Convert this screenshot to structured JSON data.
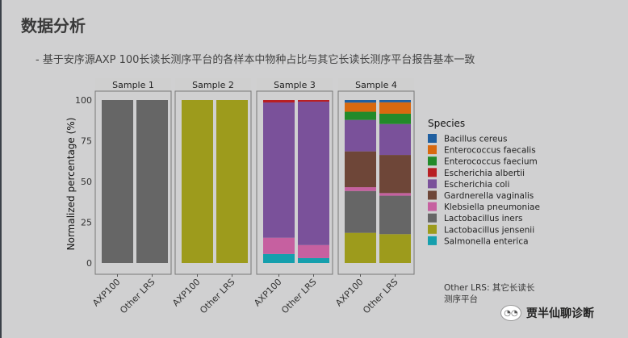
{
  "slide": {
    "title": "数据分析",
    "subtitle": "- 基于安序源AXP 100长读长测序平台的各样本中物种占比与其它长读长测序平台报告基本一致",
    "note": "Other LRS: 其它长读长测序平台",
    "watermark": "贾半仙聊诊断"
  },
  "chart_data": {
    "type": "bar",
    "stacked": true,
    "ylabel": "Normalized percentage (%)",
    "ylim": [
      0,
      100
    ],
    "yticks": [
      "0",
      "25",
      "50",
      "75",
      "100"
    ],
    "categories": [
      "AXP100",
      "Other LRS"
    ],
    "legend_title": "Species",
    "legend_position": "right",
    "species": [
      {
        "name": "Bacillus cereus",
        "color": "#1f5fa0"
      },
      {
        "name": "Enterococcus faecalis",
        "color": "#d8690f"
      },
      {
        "name": "Enterococcus faecium",
        "color": "#228a2a"
      },
      {
        "name": "Escherichia albertii",
        "color": "#b81f23"
      },
      {
        "name": "Escherichia coli",
        "color": "#7a519a"
      },
      {
        "name": "Gardnerella vaginalis",
        "color": "#6e4638"
      },
      {
        "name": "Klebsiella pneumoniae",
        "color": "#c660a0"
      },
      {
        "name": "Lactobacillus iners",
        "color": "#666666"
      },
      {
        "name": "Lactobacillus jensenii",
        "color": "#9d9b1c"
      },
      {
        "name": "Salmonella enterica",
        "color": "#159fad"
      }
    ],
    "panels": [
      {
        "title": "Sample 1",
        "bars": [
          {
            "Lactobacillus iners": 100
          },
          {
            "Lactobacillus iners": 100
          }
        ]
      },
      {
        "title": "Sample 2",
        "bars": [
          {
            "Lactobacillus jensenii": 100
          },
          {
            "Lactobacillus jensenii": 100
          }
        ]
      },
      {
        "title": "Sample 3",
        "bars": [
          {
            "Salmonella enterica": 5.5,
            "Klebsiella pneumoniae": 10,
            "Escherichia coli": 83,
            "Escherichia albertii": 1.5
          },
          {
            "Salmonella enterica": 3,
            "Klebsiella pneumoniae": 8,
            "Escherichia coli": 88,
            "Escherichia albertii": 1
          }
        ]
      },
      {
        "title": "Sample 4",
        "bars": [
          {
            "Lactobacillus jensenii": 18.5,
            "Lactobacillus iners": 25.7,
            "Klebsiella pneumoniae": 2.3,
            "Gardnerella vaginalis": 22,
            "Escherichia coli": 19.3,
            "Enterococcus faecium": 5,
            "Enterococcus faecalis": 5.6,
            "Bacillus cereus": 1.6
          },
          {
            "Lactobacillus jensenii": 17.7,
            "Lactobacillus iners": 23.6,
            "Klebsiella pneumoniae": 1.6,
            "Gardnerella vaginalis": 23.4,
            "Escherichia coli": 19,
            "Enterococcus faecium": 6.3,
            "Enterococcus faecalis": 7,
            "Bacillus cereus": 1.4
          }
        ]
      }
    ]
  }
}
